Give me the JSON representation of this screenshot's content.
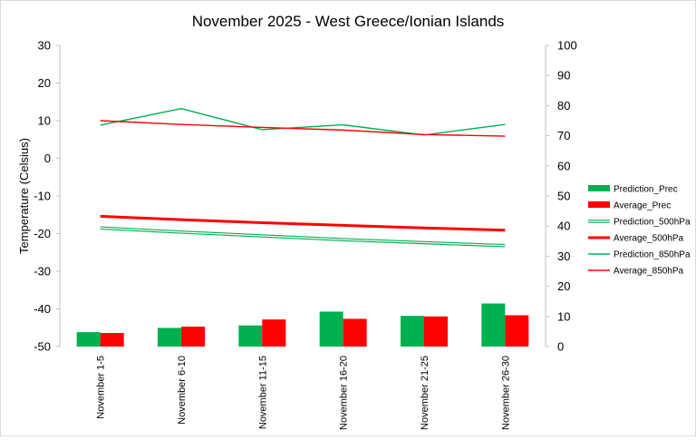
{
  "chart_data": {
    "type": "bar",
    "title": "November 2025 - West Greece/Ionian Islands",
    "ylabel": "Temperature (Celsius)",
    "xlabel": "",
    "categories": [
      "November 1-5",
      "November 6-10",
      "November 11-15",
      "November 16-20",
      "November 21-25",
      "November 26-30"
    ],
    "ylim": [
      -50,
      30
    ],
    "y2lim": [
      0,
      100
    ],
    "yticks": [
      "30",
      "20",
      "10",
      "0",
      "-10",
      "-20",
      "-30",
      "-40",
      "-50"
    ],
    "y2ticks": [
      "100",
      "90",
      "80",
      "70",
      "60",
      "50",
      "40",
      "30",
      "20",
      "10",
      "0"
    ],
    "grid": false,
    "legend_position": "right",
    "series": [
      {
        "name": "Prediction_Prec",
        "kind": "bar",
        "axis": "secondary",
        "color": "#00b050",
        "values": [
          4.8,
          6.2,
          7.0,
          11.6,
          10.2,
          14.3
        ]
      },
      {
        "name": "Average_Prec",
        "kind": "bar",
        "axis": "secondary",
        "color": "#ff0000",
        "values": [
          4.5,
          6.6,
          9.0,
          9.2,
          10.0,
          10.4
        ]
      },
      {
        "name": "Prediction_500hPa",
        "kind": "line",
        "style": "double",
        "axis": "primary",
        "color": "#00b050",
        "values": [
          -18.5,
          -19.6,
          -20.6,
          -21.6,
          -22.4,
          -23.2
        ]
      },
      {
        "name": "Average_500hPa",
        "kind": "line",
        "style": "thick",
        "axis": "primary",
        "color": "#ff0000",
        "values": [
          -15.4,
          -16.3,
          -17.1,
          -17.8,
          -18.5,
          -19.1
        ]
      },
      {
        "name": "Prediction_850hPa",
        "kind": "line",
        "style": "thin",
        "axis": "primary",
        "color": "#00b050",
        "values": [
          8.8,
          13.2,
          7.6,
          8.9,
          6.2,
          9.0
        ]
      },
      {
        "name": "Average_850hPa",
        "kind": "line",
        "style": "thin",
        "axis": "primary",
        "color": "#ff0000",
        "values": [
          10.0,
          9.0,
          8.2,
          7.5,
          6.3,
          5.9
        ]
      }
    ]
  }
}
